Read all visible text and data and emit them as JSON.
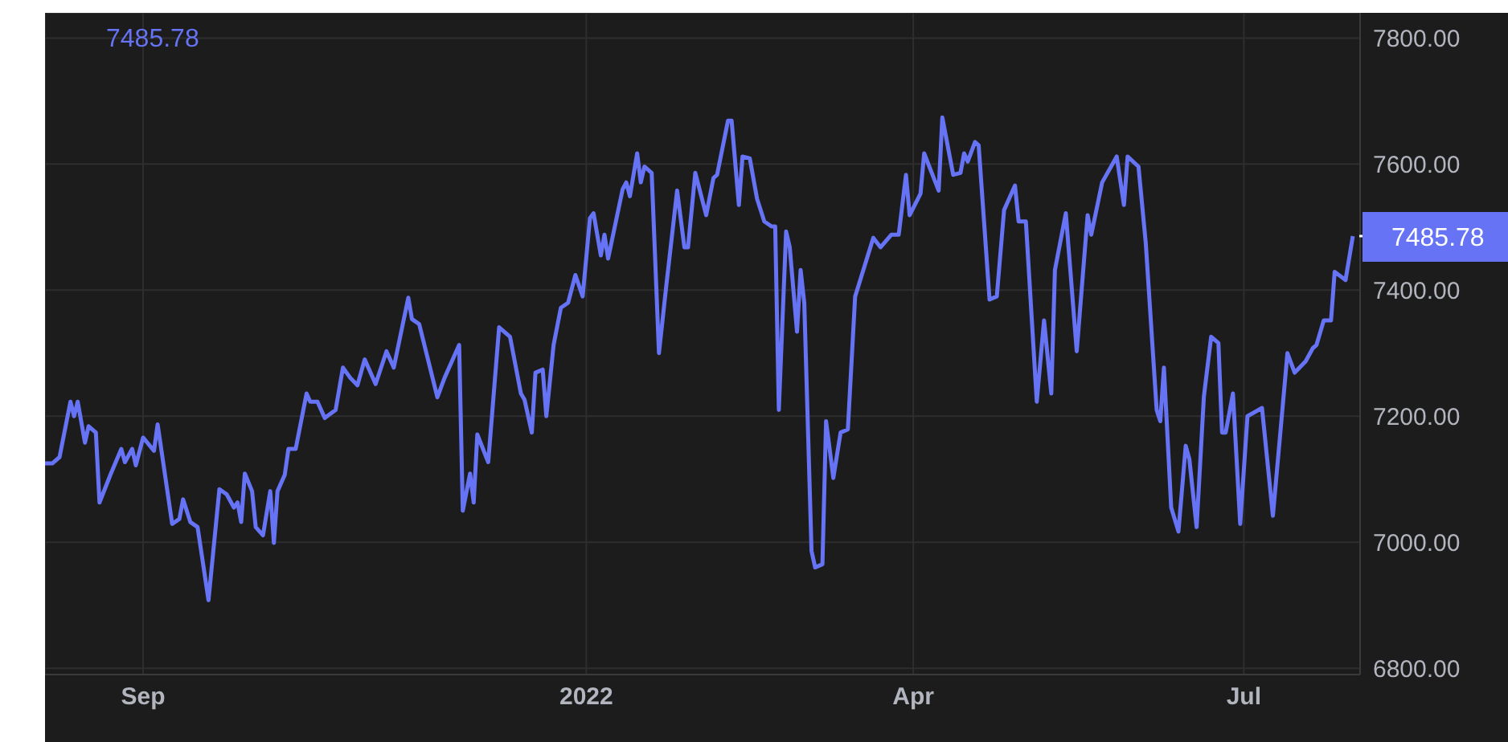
{
  "chart_data": {
    "type": "line",
    "title": "7485.78",
    "grid": true,
    "marker": "none",
    "line_style": "solid",
    "xlim": [
      "2021-08-05",
      "2022-08-02"
    ],
    "xticks": [
      {
        "value": "2021-09-01",
        "label": "Sep"
      },
      {
        "value": "2022-01-01",
        "label": "2022"
      },
      {
        "value": "2022-04-01",
        "label": "Apr"
      },
      {
        "value": "2022-07-01",
        "label": "Jul"
      }
    ],
    "ylim": [
      6790,
      7840
    ],
    "yticks": [
      {
        "value": 6800,
        "label": "6800.00"
      },
      {
        "value": 7000,
        "label": "7000.00"
      },
      {
        "value": 7200,
        "label": "7200.00"
      },
      {
        "value": 7400,
        "label": "7400.00"
      },
      {
        "value": 7600,
        "label": "7600.00"
      },
      {
        "value": 7800,
        "label": "7800.00"
      }
    ],
    "annotations": [
      {
        "text": "7485.78",
        "x": "2022-07-31",
        "y": 7485.78
      }
    ],
    "x": [
      "2021-08-05",
      "2021-08-07",
      "2021-08-09",
      "2021-08-12",
      "2021-08-13",
      "2021-08-14",
      "2021-08-16",
      "2021-08-17",
      "2021-08-19",
      "2021-08-20",
      "2021-08-23",
      "2021-08-26",
      "2021-08-27",
      "2021-08-29",
      "2021-08-30",
      "2021-09-01",
      "2021-09-04",
      "2021-09-05",
      "2021-09-09",
      "2021-09-11",
      "2021-09-12",
      "2021-09-14",
      "2021-09-16",
      "2021-09-19",
      "2021-09-22",
      "2021-09-24",
      "2021-09-26",
      "2021-09-27",
      "2021-09-28",
      "2021-09-29",
      "2021-10-01",
      "2021-10-02",
      "2021-10-04",
      "2021-10-06",
      "2021-10-07",
      "2021-10-08",
      "2021-10-10",
      "2021-10-11",
      "2021-10-13",
      "2021-10-16",
      "2021-10-17",
      "2021-10-19",
      "2021-10-21",
      "2021-10-24",
      "2021-10-26",
      "2021-10-28",
      "2021-10-30",
      "2021-11-01",
      "2021-11-04",
      "2021-11-07",
      "2021-11-09",
      "2021-11-13",
      "2021-11-14",
      "2021-11-16",
      "2021-11-21",
      "2021-11-23",
      "2021-11-27",
      "2021-11-28",
      "2021-11-30",
      "2021-12-01",
      "2021-12-02",
      "2021-12-05",
      "2021-12-08",
      "2021-12-11",
      "2021-12-14",
      "2021-12-15",
      "2021-12-17",
      "2021-12-18",
      "2021-12-20",
      "2021-12-21",
      "2021-12-23",
      "2021-12-25",
      "2021-12-27",
      "2021-12-29",
      "2021-12-31",
      "2022-01-02",
      "2022-01-03",
      "2022-01-05",
      "2022-01-06",
      "2022-01-07",
      "2022-01-11",
      "2022-01-12",
      "2022-01-13",
      "2022-01-15",
      "2022-01-16",
      "2022-01-17",
      "2022-01-19",
      "2022-01-21",
      "2022-01-23",
      "2022-01-26",
      "2022-01-28",
      "2022-01-29",
      "2022-01-31",
      "2022-02-03",
      "2022-02-05",
      "2022-02-06",
      "2022-02-09",
      "2022-02-10",
      "2022-02-12",
      "2022-02-13",
      "2022-02-15",
      "2022-02-17",
      "2022-02-19",
      "2022-02-21",
      "2022-02-22",
      "2022-02-23",
      "2022-02-25",
      "2022-02-26",
      "2022-02-28",
      "2022-03-01",
      "2022-03-02",
      "2022-03-04",
      "2022-03-05",
      "2022-03-07",
      "2022-03-08",
      "2022-03-10",
      "2022-03-12",
      "2022-03-14",
      "2022-03-16",
      "2022-03-21",
      "2022-03-23",
      "2022-03-26",
      "2022-03-28",
      "2022-03-30",
      "2022-03-31",
      "2022-04-03",
      "2022-04-04",
      "2022-04-08",
      "2022-04-09",
      "2022-04-12",
      "2022-04-14",
      "2022-04-15",
      "2022-04-16",
      "2022-04-18",
      "2022-04-19",
      "2022-04-22",
      "2022-04-24",
      "2022-04-26",
      "2022-04-29",
      "2022-04-30",
      "2022-05-02",
      "2022-05-05",
      "2022-05-07",
      "2022-05-09",
      "2022-05-10",
      "2022-05-13",
      "2022-05-16",
      "2022-05-19",
      "2022-05-20",
      "2022-05-23",
      "2022-05-27",
      "2022-05-29",
      "2022-05-30",
      "2022-06-02",
      "2022-06-04",
      "2022-06-07",
      "2022-06-08",
      "2022-06-09",
      "2022-06-11",
      "2022-06-13",
      "2022-06-15",
      "2022-06-16",
      "2022-06-18",
      "2022-06-20",
      "2022-06-22",
      "2022-06-24",
      "2022-06-25",
      "2022-06-26",
      "2022-06-28",
      "2022-06-30",
      "2022-07-02",
      "2022-07-06",
      "2022-07-09",
      "2022-07-13",
      "2022-07-15",
      "2022-07-18",
      "2022-07-20",
      "2022-07-21",
      "2022-07-23",
      "2022-07-25",
      "2022-07-26",
      "2022-07-29",
      "2022-07-31"
    ],
    "series": [
      {
        "color": "#6673f5",
        "values": [
          7125,
          7125,
          7135,
          7223,
          7200,
          7223,
          7158,
          7184,
          7174,
          7063,
          7107,
          7148,
          7127,
          7148,
          7122,
          7166,
          7145,
          7187,
          7029,
          7037,
          7068,
          7032,
          7024,
          6908,
          7084,
          7076,
          7055,
          7063,
          7032,
          7109,
          7081,
          7024,
          7011,
          7081,
          6999,
          7081,
          7107,
          7148,
          7148,
          7236,
          7223,
          7223,
          7197,
          7210,
          7277,
          7261,
          7249,
          7290,
          7251,
          7303,
          7277,
          7388,
          7354,
          7346,
          7230,
          7261,
          7313,
          7050,
          7109,
          7063,
          7171,
          7127,
          7341,
          7326,
          7236,
          7226,
          7174,
          7269,
          7274,
          7200,
          7313,
          7372,
          7380,
          7424,
          7390,
          7514,
          7522,
          7455,
          7488,
          7450,
          7560,
          7571,
          7549,
          7617,
          7571,
          7596,
          7586,
          7300,
          7406,
          7558,
          7468,
          7468,
          7586,
          7519,
          7578,
          7583,
          7669,
          7669,
          7535,
          7612,
          7609,
          7545,
          7509,
          7501,
          7501,
          7210,
          7493,
          7468,
          7334,
          7432,
          7380,
          6986,
          6960,
          6965,
          7192,
          7102,
          7174,
          7179,
          7390,
          7483,
          7468,
          7488,
          7488,
          7583,
          7519,
          7553,
          7617,
          7558,
          7674,
          7583,
          7586,
          7617,
          7604,
          7635,
          7630,
          7385,
          7390,
          7527,
          7566,
          7509,
          7509,
          7223,
          7352,
          7236,
          7432,
          7522,
          7303,
          7519,
          7488,
          7571,
          7612,
          7535,
          7612,
          7596,
          7475,
          7210,
          7192,
          7277,
          7055,
          7017,
          7153,
          7132,
          7024,
          7231,
          7326,
          7316,
          7174,
          7174,
          7236,
          7029,
          7200,
          7213,
          7042,
          7300,
          7269,
          7287,
          7308,
          7313,
          7352,
          7352,
          7429,
          7416,
          7485.78
        ]
      }
    ]
  }
}
